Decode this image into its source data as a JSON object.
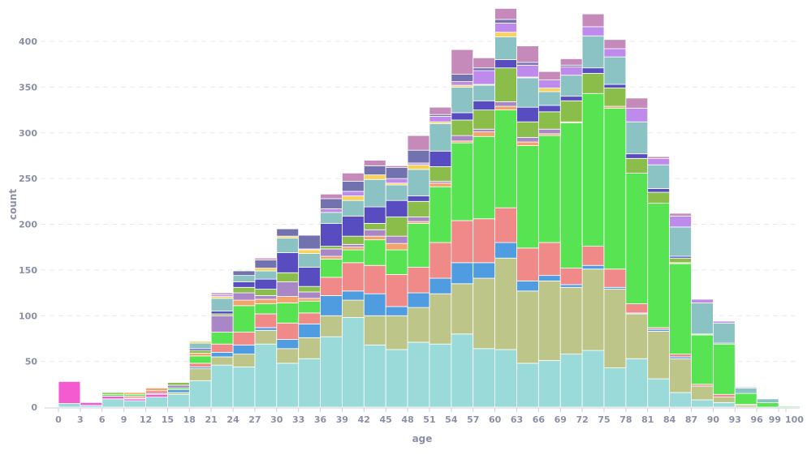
{
  "chart_data": {
    "type": "bar",
    "stacked": true,
    "histogram": true,
    "xlabel": "age",
    "ylabel": "count",
    "bin_width": 3,
    "bin_starts": [
      0,
      3,
      6,
      9,
      12,
      15,
      18,
      21,
      24,
      27,
      30,
      33,
      36,
      39,
      42,
      45,
      48,
      51,
      54,
      57,
      60,
      63,
      66,
      69,
      72,
      75,
      78,
      81,
      84,
      87,
      90,
      93,
      96,
      99
    ],
    "xlim": [
      0,
      101
    ],
    "ylim": [
      0,
      440
    ],
    "x_ticks": [
      "0",
      "3",
      "6",
      "9",
      "12",
      "15",
      "18",
      "21",
      "24",
      "27",
      "30",
      "33",
      "36",
      "39",
      "42",
      "45",
      "48",
      "51",
      "54",
      "57",
      "60",
      "63",
      "66",
      "69",
      "72",
      "75",
      "78",
      "81",
      "84",
      "87",
      "90",
      "93",
      "96",
      "99",
      "100"
    ],
    "x_tick_values": [
      0,
      3,
      6,
      9,
      12,
      15,
      18,
      21,
      24,
      27,
      30,
      33,
      36,
      39,
      42,
      45,
      48,
      51,
      54,
      57,
      60,
      63,
      66,
      69,
      72,
      75,
      78,
      81,
      84,
      87,
      90,
      93,
      96,
      99,
      100
    ],
    "y_ticks": [
      "0",
      "50",
      "100",
      "150",
      "200",
      "250",
      "300",
      "350",
      "400"
    ],
    "y_tick_values": [
      0,
      50,
      100,
      150,
      200,
      250,
      300,
      350,
      400
    ],
    "grid": "horizontal dashed",
    "legend": "none",
    "series": [
      {
        "color": "#9adbd9",
        "values": [
          4,
          2,
          9,
          7,
          11,
          14,
          29,
          46,
          44,
          69,
          48,
          53,
          77,
          98,
          68,
          63,
          71,
          69,
          80,
          64,
          63,
          48,
          51,
          58,
          62,
          43,
          53,
          31,
          16,
          8,
          5,
          0,
          0,
          0
        ]
      },
      {
        "color": "#f45bd0",
        "values": [
          24,
          3,
          3,
          2,
          3,
          0,
          0,
          0,
          0,
          0,
          0,
          0,
          0,
          0,
          0,
          0,
          0,
          0,
          0,
          0,
          0,
          0,
          0,
          0,
          0,
          0,
          0,
          0,
          0,
          0,
          0,
          0,
          0,
          0
        ]
      },
      {
        "color": "#bec589",
        "values": [
          0,
          0,
          0,
          1,
          0,
          2,
          13,
          9,
          14,
          15,
          16,
          23,
          23,
          19,
          32,
          37,
          38,
          55,
          55,
          77,
          100,
          79,
          87,
          73,
          89,
          86,
          49,
          52,
          37,
          15,
          6,
          2,
          0,
          0
        ]
      },
      {
        "color": "#4f9de0",
        "values": [
          0,
          0,
          0,
          0,
          1,
          3,
          2,
          5,
          10,
          3,
          10,
          15,
          22,
          10,
          24,
          10,
          16,
          17,
          23,
          17,
          17,
          11,
          6,
          3,
          4,
          2,
          1,
          2,
          2,
          0,
          0,
          0,
          0,
          0
        ]
      },
      {
        "color": "#ef8a89",
        "values": [
          0,
          0,
          0,
          2,
          3,
          0,
          4,
          9,
          14,
          15,
          18,
          12,
          20,
          31,
          31,
          35,
          28,
          39,
          46,
          48,
          38,
          36,
          36,
          18,
          21,
          20,
          10,
          2,
          3,
          2,
          3,
          1,
          0,
          0
        ]
      },
      {
        "color": "#58e352",
        "values": [
          0,
          0,
          2,
          2,
          0,
          2,
          8,
          13,
          29,
          11,
          22,
          13,
          20,
          14,
          28,
          27,
          48,
          61,
          85,
          90,
          107,
          112,
          117,
          159,
          167,
          176,
          143,
          136,
          99,
          54,
          55,
          12,
          5,
          1
        ]
      },
      {
        "color": "#f2a46a",
        "values": [
          0,
          0,
          0,
          2,
          3,
          0,
          3,
          0,
          6,
          5,
          7,
          3,
          3,
          3,
          4,
          7,
          2,
          4,
          2,
          5,
          4,
          4,
          2,
          1,
          0,
          2,
          0,
          0,
          1,
          0,
          0,
          0,
          0,
          0
        ]
      },
      {
        "color": "#a987c6",
        "values": [
          0,
          0,
          0,
          0,
          0,
          3,
          0,
          18,
          8,
          4,
          16,
          7,
          8,
          3,
          7,
          8,
          5,
          2,
          6,
          3,
          5,
          5,
          5,
          0,
          0,
          0,
          0,
          0,
          0,
          0,
          0,
          0,
          0,
          0
        ]
      },
      {
        "color": "#8abd4a",
        "values": [
          0,
          0,
          2,
          0,
          0,
          3,
          3,
          2,
          6,
          7,
          10,
          6,
          3,
          9,
          7,
          21,
          17,
          16,
          17,
          21,
          37,
          17,
          19,
          23,
          22,
          20,
          16,
          12,
          5,
          1,
          0,
          0,
          0,
          0
        ]
      },
      {
        "color": "#574cc0",
        "values": [
          0,
          0,
          0,
          0,
          0,
          0,
          2,
          3,
          6,
          11,
          22,
          21,
          25,
          22,
          18,
          18,
          6,
          17,
          8,
          10,
          9,
          16,
          7,
          5,
          6,
          4,
          5,
          4,
          2,
          0,
          1,
          0,
          0,
          0
        ]
      },
      {
        "color": "#8bc2c3",
        "values": [
          0,
          0,
          0,
          0,
          0,
          0,
          6,
          14,
          7,
          9,
          16,
          15,
          12,
          17,
          30,
          17,
          29,
          30,
          28,
          17,
          25,
          32,
          15,
          23,
          35,
          30,
          35,
          26,
          32,
          34,
          22,
          6,
          4,
          0
        ]
      },
      {
        "color": "#f8d35a",
        "values": [
          0,
          0,
          0,
          0,
          0,
          0,
          2,
          2,
          0,
          3,
          2,
          4,
          0,
          5,
          5,
          2,
          5,
          2,
          2,
          1,
          5,
          1,
          4,
          0,
          0,
          0,
          0,
          0,
          0,
          0,
          0,
          0,
          0,
          0
        ]
      },
      {
        "color": "#be8aec",
        "values": [
          0,
          0,
          0,
          0,
          0,
          0,
          0,
          2,
          0,
          0,
          0,
          1,
          4,
          5,
          0,
          5,
          2,
          6,
          4,
          15,
          10,
          13,
          9,
          9,
          10,
          9,
          15,
          7,
          12,
          4,
          2,
          1,
          0,
          0
        ]
      },
      {
        "color": "#7272ae",
        "values": [
          0,
          0,
          0,
          0,
          0,
          0,
          0,
          0,
          5,
          9,
          8,
          15,
          11,
          11,
          10,
          12,
          14,
          2,
          8,
          3,
          4,
          3,
          0,
          2,
          0,
          0,
          0,
          0,
          0,
          0,
          0,
          0,
          0,
          0
        ]
      },
      {
        "color": "#c58ab9",
        "values": [
          0,
          0,
          0,
          0,
          0,
          0,
          0,
          2,
          0,
          2,
          0,
          0,
          5,
          9,
          6,
          2,
          16,
          8,
          27,
          11,
          12,
          18,
          9,
          7,
          14,
          10,
          11,
          2,
          3,
          0,
          0,
          0,
          0,
          0
        ]
      }
    ]
  }
}
